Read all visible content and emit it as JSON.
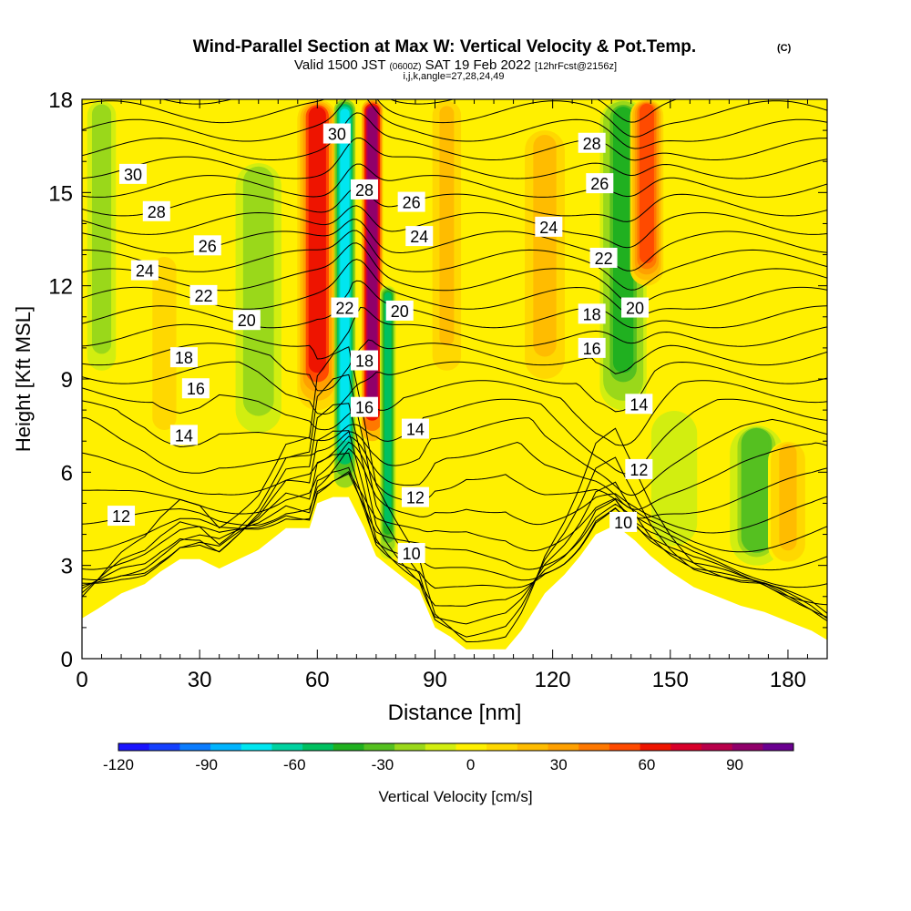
{
  "header": {
    "title": "Wind-Parallel Section at Max W: Vertical Velocity & Pot.Temp.",
    "title_mark": "(C)",
    "subtitle_valid": "Valid 1500 JST",
    "subtitle_z": "(0600Z)",
    "subtitle_date": "SAT 19 Feb 2022",
    "subtitle_fcst": "[12hrFcst@2156z]",
    "subtitle_params": "i,j,k,angle=27,28,24,49"
  },
  "colorbar": {
    "label": "Vertical Velocity [cm/s]",
    "ticks": [
      "-120",
      "-90",
      "-60",
      "-30",
      "0",
      "30",
      "60",
      "90"
    ],
    "tick_values": [
      -120,
      -90,
      -60,
      -30,
      0,
      30,
      60,
      90
    ],
    "range": [
      -120,
      110
    ],
    "colors": [
      "#1a14ff",
      "#1440ff",
      "#0a7cff",
      "#00b4ff",
      "#00e6f0",
      "#00d2a0",
      "#00c060",
      "#20b020",
      "#55c020",
      "#9ad81a",
      "#d2ee10",
      "#fff000",
      "#ffd800",
      "#ffbc00",
      "#ffa000",
      "#ff7800",
      "#ff4a00",
      "#ee1400",
      "#d8002a",
      "#b8004a",
      "#90006a",
      "#6a0090"
    ]
  },
  "chart_data": {
    "type": "heatmap",
    "title": "Wind-Parallel Section at Max W: Vertical Velocity & Pot.Temp.",
    "xlabel": "Distance [nm]",
    "ylabel": "Height [Kft MSL]",
    "xlim": [
      0,
      190
    ],
    "ylim": [
      0,
      18
    ],
    "x_ticks": [
      0,
      30,
      60,
      90,
      120,
      150,
      180
    ],
    "y_ticks": [
      0,
      3,
      6,
      9,
      12,
      15,
      18
    ],
    "fill_variable": "Vertical Velocity [cm/s]",
    "fill_range": [
      -120,
      110
    ],
    "vertical_velocity_features": [
      {
        "x": 5,
        "width": 2.5,
        "value": -20,
        "z_range": [
          9,
          18
        ]
      },
      {
        "x": 21,
        "width": 2.5,
        "value": 10,
        "z_range": [
          7,
          13
        ]
      },
      {
        "x": 45,
        "width": 4,
        "value": -20,
        "z_range": [
          7,
          16
        ]
      },
      {
        "x": 60,
        "width": 3,
        "value": 60,
        "z_range": [
          8,
          18
        ]
      },
      {
        "x": 67,
        "width": 1.6,
        "value": -80,
        "z_range": [
          5.5,
          18
        ]
      },
      {
        "x": 74,
        "width": 1.6,
        "value": 100,
        "z_range": [
          7,
          18
        ]
      },
      {
        "x": 78,
        "width": 1.2,
        "value": -50,
        "z_range": [
          3.2,
          12
        ]
      },
      {
        "x": 93,
        "width": 2.5,
        "value": 20,
        "z_range": [
          9,
          18
        ]
      },
      {
        "x": 118,
        "width": 3,
        "value": 25,
        "z_range": [
          9,
          17
        ]
      },
      {
        "x": 138,
        "width": 3.5,
        "value": -40,
        "z_range": [
          8,
          18
        ]
      },
      {
        "x": 144,
        "width": 2.5,
        "value": 50,
        "z_range": [
          12,
          18
        ]
      },
      {
        "x": 151,
        "width": 4,
        "value": -15,
        "z_range": [
          3.5,
          8
        ]
      },
      {
        "x": 172,
        "width": 4,
        "value": -35,
        "z_range": [
          3,
          7.5
        ]
      },
      {
        "x": 180,
        "width": 3,
        "value": 20,
        "z_range": [
          3,
          7
        ]
      },
      {
        "x": 100,
        "width": 6,
        "value": 5,
        "z_range": [
          0.3,
          2.5
        ]
      }
    ],
    "terrain": [
      [
        0,
        1.3
      ],
      [
        4,
        1.6
      ],
      [
        10,
        2.1
      ],
      [
        16,
        2.4
      ],
      [
        20,
        2.8
      ],
      [
        25,
        3.2
      ],
      [
        30,
        3.2
      ],
      [
        35,
        2.9
      ],
      [
        40,
        3.2
      ],
      [
        45,
        3.5
      ],
      [
        52,
        4.2
      ],
      [
        58,
        4.2
      ],
      [
        60,
        5.0
      ],
      [
        64,
        5.2
      ],
      [
        68,
        5.2
      ],
      [
        72,
        4.2
      ],
      [
        75,
        3.3
      ],
      [
        78,
        3.0
      ],
      [
        82,
        2.6
      ],
      [
        86,
        2.2
      ],
      [
        90,
        1.0
      ],
      [
        94,
        0.7
      ],
      [
        98,
        0.3
      ],
      [
        108,
        0.3
      ],
      [
        112,
        0.9
      ],
      [
        118,
        2.1
      ],
      [
        123,
        2.7
      ],
      [
        127,
        3.3
      ],
      [
        131,
        4.0
      ],
      [
        136,
        4.3
      ],
      [
        141,
        3.8
      ],
      [
        145,
        3.3
      ],
      [
        150,
        2.8
      ],
      [
        156,
        2.3
      ],
      [
        162,
        2.0
      ],
      [
        168,
        1.7
      ],
      [
        174,
        1.5
      ],
      [
        180,
        1.2
      ],
      [
        186,
        0.9
      ],
      [
        190,
        0.6
      ]
    ],
    "potential_temperature": {
      "variable": "Potential Temperature",
      "labels": [
        {
          "text": "30",
          "x": 13,
          "z": 15.6
        },
        {
          "text": "28",
          "x": 19,
          "z": 14.4
        },
        {
          "text": "26",
          "x": 32,
          "z": 13.3
        },
        {
          "text": "24",
          "x": 16,
          "z": 12.5
        },
        {
          "text": "22",
          "x": 31,
          "z": 11.7
        },
        {
          "text": "20",
          "x": 42,
          "z": 10.9
        },
        {
          "text": "18",
          "x": 26,
          "z": 9.7
        },
        {
          "text": "16",
          "x": 29,
          "z": 8.7
        },
        {
          "text": "14",
          "x": 26,
          "z": 7.2
        },
        {
          "text": "12",
          "x": 10,
          "z": 4.6
        },
        {
          "text": "30",
          "x": 65,
          "z": 16.9
        },
        {
          "text": "28",
          "x": 72,
          "z": 15.1
        },
        {
          "text": "26",
          "x": 84,
          "z": 14.7
        },
        {
          "text": "24",
          "x": 86,
          "z": 13.6
        },
        {
          "text": "22",
          "x": 67,
          "z": 11.3
        },
        {
          "text": "20",
          "x": 81,
          "z": 11.2
        },
        {
          "text": "18",
          "x": 72,
          "z": 9.6
        },
        {
          "text": "16",
          "x": 72,
          "z": 8.1
        },
        {
          "text": "14",
          "x": 85,
          "z": 7.4
        },
        {
          "text": "12",
          "x": 85,
          "z": 5.2
        },
        {
          "text": "10",
          "x": 84,
          "z": 3.4
        },
        {
          "text": "28",
          "x": 130,
          "z": 16.6
        },
        {
          "text": "26",
          "x": 132,
          "z": 15.3
        },
        {
          "text": "24",
          "x": 119,
          "z": 13.9
        },
        {
          "text": "22",
          "x": 133,
          "z": 12.9
        },
        {
          "text": "20",
          "x": 141,
          "z": 11.3
        },
        {
          "text": "18",
          "x": 130,
          "z": 11.1
        },
        {
          "text": "16",
          "x": 130,
          "z": 10.0
        },
        {
          "text": "14",
          "x": 142,
          "z": 8.2
        },
        {
          "text": "12",
          "x": 142,
          "z": 6.1
        },
        {
          "text": "10",
          "x": 138,
          "z": 4.4
        }
      ]
    }
  }
}
